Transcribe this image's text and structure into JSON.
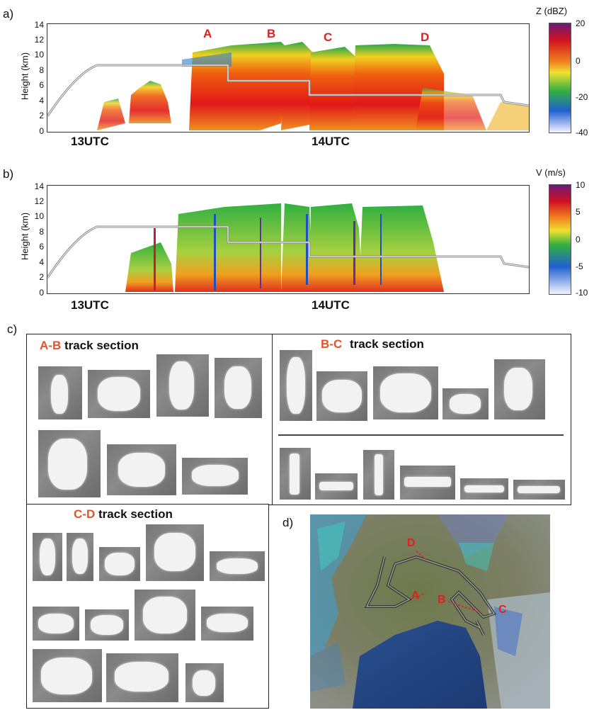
{
  "panel_a": {
    "letter": "a)",
    "ylabel": "Height (km)",
    "yticks": [
      "14",
      "12",
      "10",
      "8",
      "6",
      "4",
      "2",
      "0"
    ],
    "time_labels": [
      "13UTC",
      "14UTC"
    ],
    "segment_labels": [
      "A",
      "B",
      "C",
      "D"
    ],
    "colorbar_title": "Z (dBZ)",
    "colorbar_ticks": [
      "20",
      "0",
      "-20",
      "-40"
    ]
  },
  "panel_b": {
    "letter": "b)",
    "ylabel": "Height (km)",
    "yticks": [
      "14",
      "12",
      "10",
      "8",
      "6",
      "4",
      "2",
      "0"
    ],
    "time_labels": [
      "13UTC",
      "14UTC"
    ],
    "colorbar_title": "V (m/s)",
    "colorbar_ticks": [
      "10",
      "5",
      "0",
      "-5",
      "-10"
    ]
  },
  "panel_c": {
    "letter": "c)",
    "ab_head": "A-B",
    "ab_tail": "track section",
    "bc_head": "B-C",
    "bc_tail": "track section",
    "cd_head": "C-D",
    "cd_tail": "track section"
  },
  "panel_d": {
    "letter": "d)",
    "labels": [
      "D",
      "A",
      "B",
      "C"
    ]
  },
  "colors": {
    "label_red": "#e02020",
    "label_orange": "#e8502a"
  }
}
